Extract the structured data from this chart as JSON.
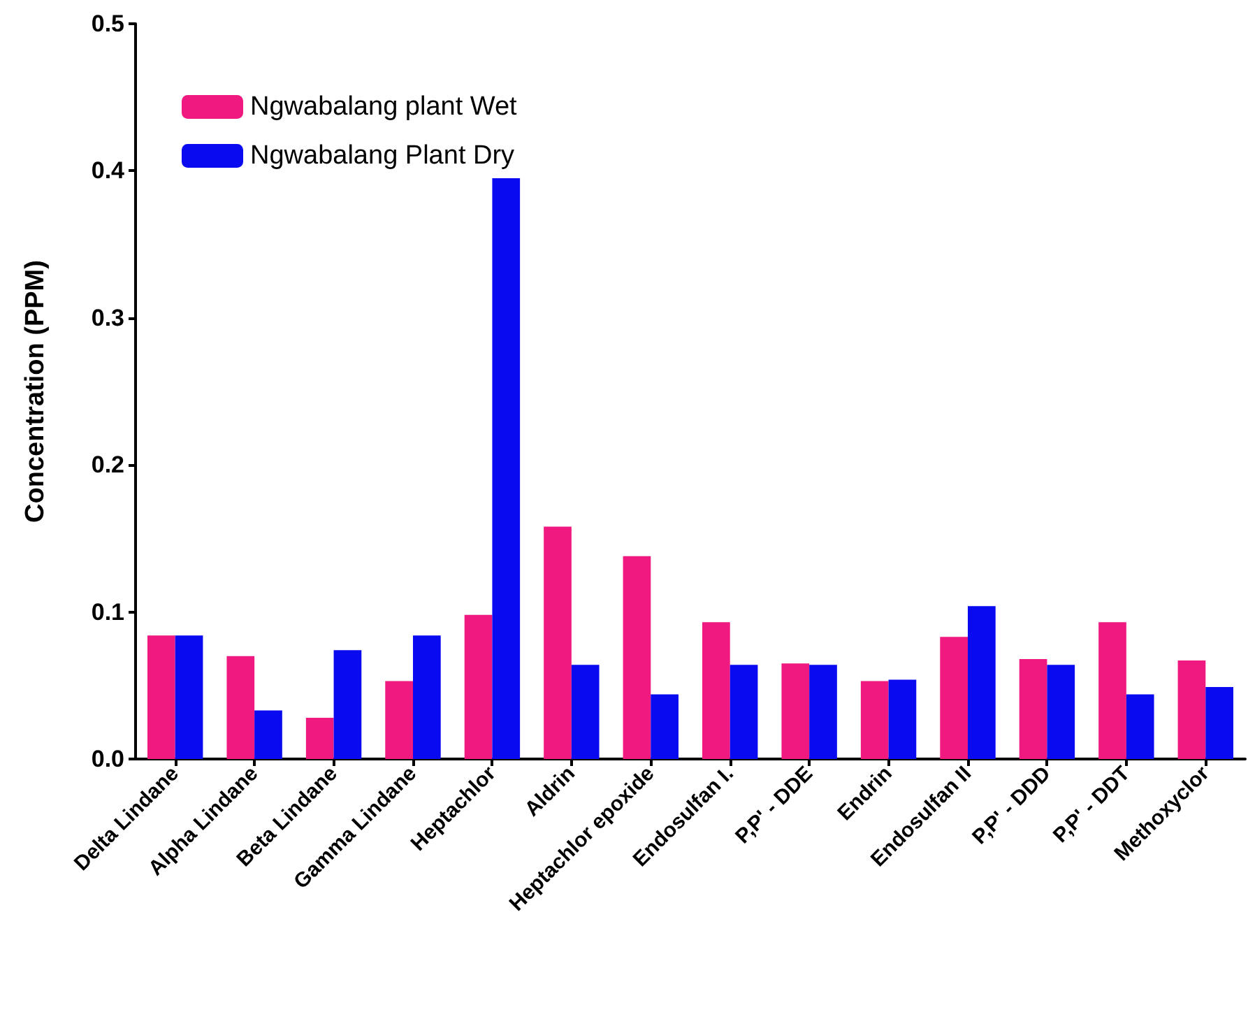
{
  "chart_data": {
    "type": "bar",
    "ylabel": "Concentration (PPM)",
    "categories": [
      "Delta Lindane",
      "Alpha Lindane",
      "Beta Lindane",
      "Gamma Lindane",
      "Heptachlor",
      "Aldrin",
      "Heptachlor epoxide",
      "Endosulfan I.",
      "P,P' - DDE",
      "Endrin",
      "Endosulfan II",
      "P,P' - DDD",
      "P,P' - DDT",
      "Methoxyclor"
    ],
    "series": [
      {
        "name": "Ngwabalang plant Wet",
        "color": "#f0197f",
        "values": [
          0.084,
          0.07,
          0.028,
          0.053,
          0.098,
          0.158,
          0.138,
          0.093,
          0.065,
          0.053,
          0.083,
          0.068,
          0.093,
          0.067
        ]
      },
      {
        "name": "Ngwabalang Plant Dry",
        "color": "#0a0af0",
        "values": [
          0.084,
          0.033,
          0.074,
          0.084,
          0.395,
          0.064,
          0.044,
          0.064,
          0.064,
          0.054,
          0.104,
          0.064,
          0.044,
          0.049
        ]
      }
    ],
    "ylim": [
      0,
      0.5
    ],
    "yticks": [
      {
        "value": 0,
        "label": "0.0"
      },
      0.1,
      0.2,
      0.3,
      0.4,
      0.5
    ],
    "grid": false,
    "legend": "top left"
  }
}
